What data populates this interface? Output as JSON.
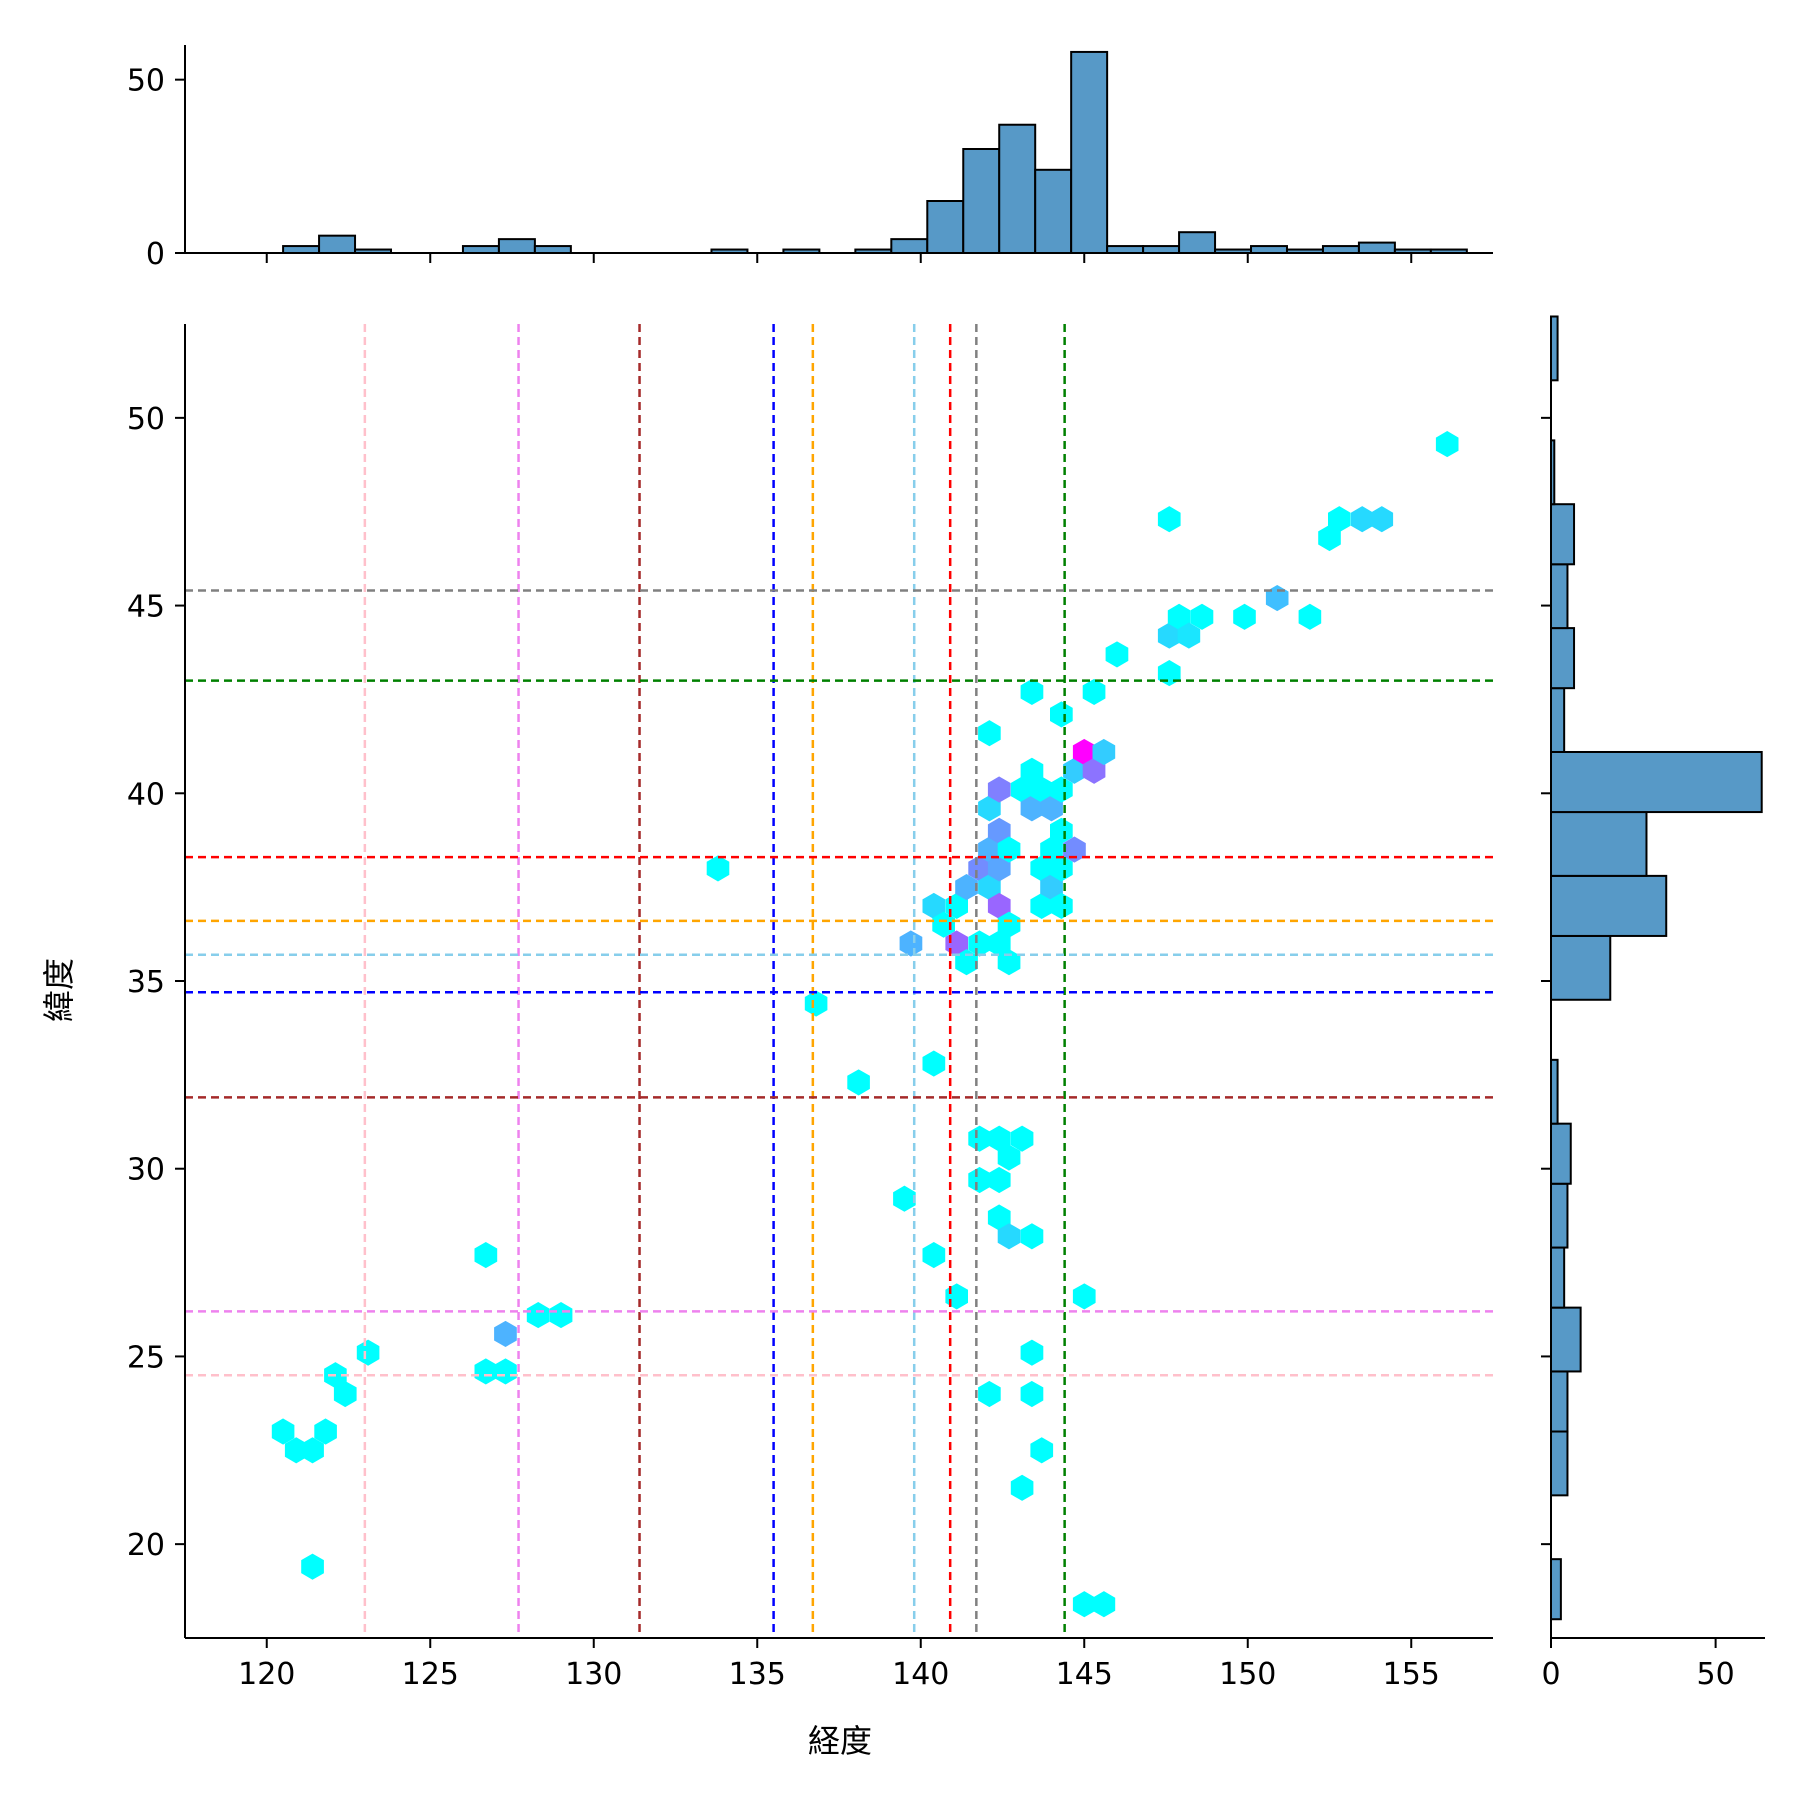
{
  "chart_data": {
    "type": "hexbin-jointplot",
    "xlabel": "経度",
    "ylabel": "緯度",
    "xlim": [
      117.5,
      157.5
    ],
    "ylim": [
      17.5,
      52.5
    ],
    "x_ticks": [
      120,
      125,
      130,
      135,
      140,
      145,
      150,
      155
    ],
    "y_ticks": [
      20,
      25,
      30,
      35,
      40,
      45,
      50
    ],
    "colormap": [
      "#00ffff",
      "#ff00ff"
    ],
    "hex_cells": [
      {
        "x": 120.5,
        "y": 23.0,
        "c": 0.0
      },
      {
        "x": 120.9,
        "y": 22.5,
        "c": 0.0
      },
      {
        "x": 121.4,
        "y": 22.5,
        "c": 0.0
      },
      {
        "x": 121.8,
        "y": 23.0,
        "c": 0.0
      },
      {
        "x": 122.1,
        "y": 24.5,
        "c": 0.0
      },
      {
        "x": 122.4,
        "y": 24.0,
        "c": 0.0
      },
      {
        "x": 123.1,
        "y": 25.1,
        "c": 0.0
      },
      {
        "x": 121.4,
        "y": 19.4,
        "c": 0.0
      },
      {
        "x": 126.7,
        "y": 27.7,
        "c": 0.0
      },
      {
        "x": 126.7,
        "y": 24.6,
        "c": 0.0
      },
      {
        "x": 127.3,
        "y": 24.6,
        "c": 0.0
      },
      {
        "x": 127.3,
        "y": 25.6,
        "c": 0.3
      },
      {
        "x": 128.3,
        "y": 26.1,
        "c": 0.0
      },
      {
        "x": 129.0,
        "y": 26.1,
        "c": 0.0
      },
      {
        "x": 133.8,
        "y": 38.0,
        "c": 0.0
      },
      {
        "x": 136.8,
        "y": 34.4,
        "c": 0.0
      },
      {
        "x": 138.1,
        "y": 32.3,
        "c": 0.0
      },
      {
        "x": 139.5,
        "y": 29.2,
        "c": 0.0
      },
      {
        "x": 139.7,
        "y": 36.0,
        "c": 0.3
      },
      {
        "x": 140.4,
        "y": 32.8,
        "c": 0.0
      },
      {
        "x": 140.4,
        "y": 27.7,
        "c": 0.0
      },
      {
        "x": 141.1,
        "y": 26.6,
        "c": 0.0
      },
      {
        "x": 140.4,
        "y": 37.0,
        "c": 0.15
      },
      {
        "x": 140.7,
        "y": 36.5,
        "c": 0.0
      },
      {
        "x": 141.1,
        "y": 37.0,
        "c": 0.0
      },
      {
        "x": 141.1,
        "y": 36.0,
        "c": 0.6
      },
      {
        "x": 141.4,
        "y": 35.5,
        "c": 0.0
      },
      {
        "x": 141.4,
        "y": 37.5,
        "c": 0.3
      },
      {
        "x": 141.8,
        "y": 38.0,
        "c": 0.45
      },
      {
        "x": 141.8,
        "y": 36.0,
        "c": 0.0
      },
      {
        "x": 141.8,
        "y": 30.8,
        "c": 0.0
      },
      {
        "x": 141.8,
        "y": 29.7,
        "c": 0.0
      },
      {
        "x": 142.1,
        "y": 41.6,
        "c": 0.0
      },
      {
        "x": 142.1,
        "y": 39.6,
        "c": 0.15
      },
      {
        "x": 142.1,
        "y": 38.5,
        "c": 0.3
      },
      {
        "x": 142.1,
        "y": 37.5,
        "c": 0.15
      },
      {
        "x": 142.1,
        "y": 24.0,
        "c": 0.0
      },
      {
        "x": 142.4,
        "y": 40.1,
        "c": 0.5
      },
      {
        "x": 142.4,
        "y": 39.0,
        "c": 0.4
      },
      {
        "x": 142.4,
        "y": 38.0,
        "c": 0.35
      },
      {
        "x": 142.4,
        "y": 37.0,
        "c": 0.6
      },
      {
        "x": 142.4,
        "y": 36.0,
        "c": 0.0
      },
      {
        "x": 142.4,
        "y": 30.8,
        "c": 0.0
      },
      {
        "x": 142.4,
        "y": 29.7,
        "c": 0.0
      },
      {
        "x": 142.4,
        "y": 28.7,
        "c": 0.0
      },
      {
        "x": 142.7,
        "y": 38.5,
        "c": 0.0
      },
      {
        "x": 142.7,
        "y": 36.5,
        "c": 0.0
      },
      {
        "x": 142.7,
        "y": 35.5,
        "c": 0.0
      },
      {
        "x": 142.7,
        "y": 30.3,
        "c": 0.0
      },
      {
        "x": 142.7,
        "y": 28.2,
        "c": 0.15
      },
      {
        "x": 143.1,
        "y": 40.1,
        "c": 0.0
      },
      {
        "x": 143.1,
        "y": 30.8,
        "c": 0.0
      },
      {
        "x": 143.1,
        "y": 21.5,
        "c": 0.0
      },
      {
        "x": 143.4,
        "y": 42.7,
        "c": 0.0
      },
      {
        "x": 143.4,
        "y": 40.6,
        "c": 0.0
      },
      {
        "x": 143.4,
        "y": 39.6,
        "c": 0.3
      },
      {
        "x": 143.4,
        "y": 28.2,
        "c": 0.0
      },
      {
        "x": 143.4,
        "y": 25.1,
        "c": 0.0
      },
      {
        "x": 143.4,
        "y": 24.0,
        "c": 0.0
      },
      {
        "x": 143.7,
        "y": 40.1,
        "c": 0.0
      },
      {
        "x": 143.7,
        "y": 38.0,
        "c": 0.0
      },
      {
        "x": 143.7,
        "y": 37.0,
        "c": 0.0
      },
      {
        "x": 143.7,
        "y": 22.5,
        "c": 0.0
      },
      {
        "x": 144.0,
        "y": 39.6,
        "c": 0.3
      },
      {
        "x": 144.0,
        "y": 38.5,
        "c": 0.0
      },
      {
        "x": 144.0,
        "y": 37.5,
        "c": 0.2
      },
      {
        "x": 144.3,
        "y": 42.1,
        "c": 0.0
      },
      {
        "x": 144.3,
        "y": 40.1,
        "c": 0.0
      },
      {
        "x": 144.3,
        "y": 39.0,
        "c": 0.0
      },
      {
        "x": 144.3,
        "y": 38.0,
        "c": 0.0
      },
      {
        "x": 144.3,
        "y": 37.0,
        "c": 0.0
      },
      {
        "x": 144.7,
        "y": 40.6,
        "c": 0.2
      },
      {
        "x": 144.7,
        "y": 38.5,
        "c": 0.45
      },
      {
        "x": 145.0,
        "y": 41.1,
        "c": 1.0
      },
      {
        "x": 145.0,
        "y": 26.6,
        "c": 0.0
      },
      {
        "x": 145.0,
        "y": 18.4,
        "c": 0.0
      },
      {
        "x": 145.3,
        "y": 42.7,
        "c": 0.0
      },
      {
        "x": 145.3,
        "y": 40.6,
        "c": 0.55
      },
      {
        "x": 145.6,
        "y": 41.1,
        "c": 0.2
      },
      {
        "x": 145.6,
        "y": 18.4,
        "c": 0.0
      },
      {
        "x": 146.0,
        "y": 43.7,
        "c": 0.0
      },
      {
        "x": 147.6,
        "y": 47.3,
        "c": 0.0
      },
      {
        "x": 147.6,
        "y": 44.2,
        "c": 0.15
      },
      {
        "x": 147.6,
        "y": 43.2,
        "c": 0.0
      },
      {
        "x": 147.9,
        "y": 44.7,
        "c": 0.0
      },
      {
        "x": 148.2,
        "y": 44.2,
        "c": 0.1
      },
      {
        "x": 148.6,
        "y": 44.7,
        "c": 0.0
      },
      {
        "x": 149.9,
        "y": 44.7,
        "c": 0.0
      },
      {
        "x": 150.9,
        "y": 45.2,
        "c": 0.25
      },
      {
        "x": 151.9,
        "y": 44.7,
        "c": 0.0
      },
      {
        "x": 152.5,
        "y": 46.8,
        "c": 0.0
      },
      {
        "x": 152.8,
        "y": 47.3,
        "c": 0.0
      },
      {
        "x": 153.5,
        "y": 47.3,
        "c": 0.15
      },
      {
        "x": 154.1,
        "y": 47.3,
        "c": 0.15
      },
      {
        "x": 156.1,
        "y": 49.3,
        "c": 0.0
      }
    ],
    "vlines": [
      {
        "x": 123.0,
        "color": "#ffc0cb"
      },
      {
        "x": 127.7,
        "color": "#ee82ee"
      },
      {
        "x": 131.4,
        "color": "#a52a2a"
      },
      {
        "x": 135.5,
        "color": "#0000ff"
      },
      {
        "x": 136.7,
        "color": "#ffa500"
      },
      {
        "x": 139.8,
        "color": "#87ceeb"
      },
      {
        "x": 140.9,
        "color": "#ff0000"
      },
      {
        "x": 141.7,
        "color": "#808080"
      },
      {
        "x": 144.4,
        "color": "#008000"
      }
    ],
    "hlines": [
      {
        "y": 45.4,
        "color": "#808080"
      },
      {
        "y": 43.0,
        "color": "#008000"
      },
      {
        "y": 38.3,
        "color": "#ff0000"
      },
      {
        "y": 36.6,
        "color": "#ffa500"
      },
      {
        "y": 35.7,
        "color": "#87ceeb"
      },
      {
        "y": 34.7,
        "color": "#0000ff"
      },
      {
        "y": 31.9,
        "color": "#a52a2a"
      },
      {
        "y": 26.2,
        "color": "#ee82ee"
      },
      {
        "y": 24.5,
        "color": "#ffc0cb"
      }
    ],
    "top_hist": {
      "bar_color": "#5799c7",
      "ylim": [
        0,
        60
      ],
      "y_ticks": [
        0,
        50
      ],
      "bins": [
        {
          "x0": 120.5,
          "x1": 121.6,
          "count": 2
        },
        {
          "x0": 121.6,
          "x1": 122.7,
          "count": 5
        },
        {
          "x0": 122.7,
          "x1": 123.8,
          "count": 1
        },
        {
          "x0": 126.0,
          "x1": 127.1,
          "count": 2
        },
        {
          "x0": 127.1,
          "x1": 128.2,
          "count": 4
        },
        {
          "x0": 128.2,
          "x1": 129.3,
          "count": 2
        },
        {
          "x0": 133.6,
          "x1": 134.7,
          "count": 1
        },
        {
          "x0": 135.8,
          "x1": 136.9,
          "count": 1
        },
        {
          "x0": 138.0,
          "x1": 139.1,
          "count": 1
        },
        {
          "x0": 139.1,
          "x1": 140.2,
          "count": 4
        },
        {
          "x0": 140.2,
          "x1": 141.3,
          "count": 15
        },
        {
          "x0": 141.3,
          "x1": 142.4,
          "count": 30
        },
        {
          "x0": 142.4,
          "x1": 143.5,
          "count": 37
        },
        {
          "x0": 143.5,
          "x1": 144.6,
          "count": 24
        },
        {
          "x0": 144.6,
          "x1": 145.7,
          "count": 58
        },
        {
          "x0": 145.7,
          "x1": 146.8,
          "count": 2
        },
        {
          "x0": 146.8,
          "x1": 147.9,
          "count": 2
        },
        {
          "x0": 147.9,
          "x1": 149.0,
          "count": 6
        },
        {
          "x0": 149.0,
          "x1": 150.1,
          "count": 1
        },
        {
          "x0": 150.1,
          "x1": 151.2,
          "count": 2
        },
        {
          "x0": 151.2,
          "x1": 152.3,
          "count": 1
        },
        {
          "x0": 152.3,
          "x1": 153.4,
          "count": 2
        },
        {
          "x0": 153.4,
          "x1": 154.5,
          "count": 3
        },
        {
          "x0": 154.5,
          "x1": 155.6,
          "count": 1
        },
        {
          "x0": 155.6,
          "x1": 156.7,
          "count": 1
        }
      ]
    },
    "right_hist": {
      "bar_color": "#5799c7",
      "xlim": [
        0,
        65
      ],
      "x_ticks": [
        0,
        50
      ],
      "bins": [
        {
          "y0": 18.0,
          "y1": 19.6,
          "count": 3
        },
        {
          "y0": 21.3,
          "y1": 23.0,
          "count": 5
        },
        {
          "y0": 23.0,
          "y1": 24.6,
          "count": 5
        },
        {
          "y0": 24.6,
          "y1": 26.3,
          "count": 9
        },
        {
          "y0": 26.3,
          "y1": 27.9,
          "count": 4
        },
        {
          "y0": 27.9,
          "y1": 29.6,
          "count": 5
        },
        {
          "y0": 29.6,
          "y1": 31.2,
          "count": 6
        },
        {
          "y0": 31.2,
          "y1": 32.9,
          "count": 2
        },
        {
          "y0": 34.5,
          "y1": 36.2,
          "count": 18
        },
        {
          "y0": 36.2,
          "y1": 37.8,
          "count": 35
        },
        {
          "y0": 37.8,
          "y1": 39.5,
          "count": 29
        },
        {
          "y0": 39.5,
          "y1": 41.1,
          "count": 64
        },
        {
          "y0": 41.1,
          "y1": 42.8,
          "count": 4
        },
        {
          "y0": 42.8,
          "y1": 44.4,
          "count": 7
        },
        {
          "y0": 44.4,
          "y1": 46.1,
          "count": 5
        },
        {
          "y0": 46.1,
          "y1": 47.7,
          "count": 7
        },
        {
          "y0": 47.7,
          "y1": 49.4,
          "count": 1
        },
        {
          "y0": 51.0,
          "y1": 52.7,
          "count": 2
        }
      ]
    }
  }
}
